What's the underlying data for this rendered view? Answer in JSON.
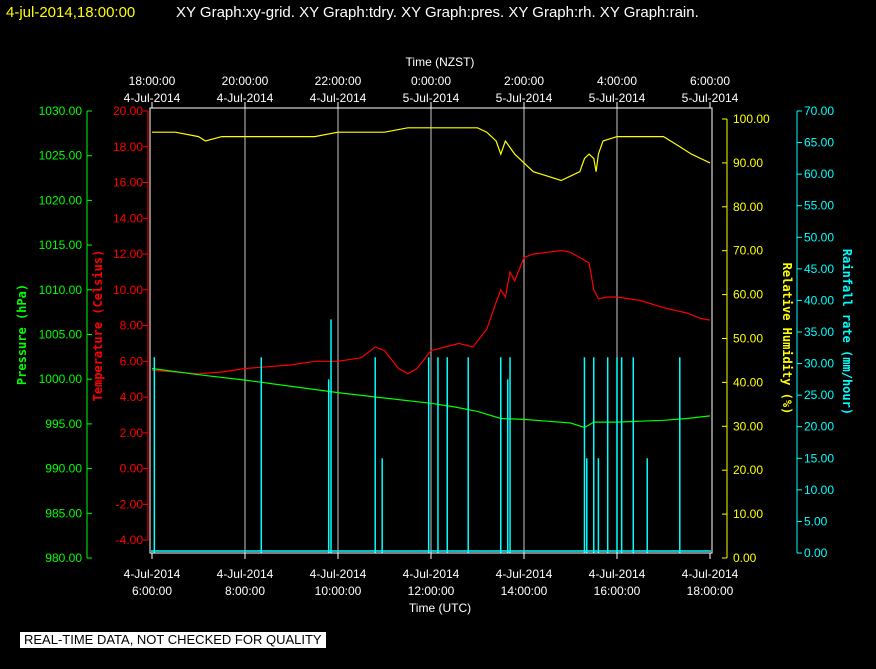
{
  "title": {
    "datetime": "4-jul-2014,18:00:00",
    "rest": "XY Graph:xy-grid.  XY Graph:tdry.  XY Graph:pres.  XY Graph:rh.  XY Graph:rain.",
    "datetime_color": "#ffff00",
    "rest_color": "#ffffff"
  },
  "disclaimer": "REAL-TIME DATA, NOT CHECKED FOR QUALITY",
  "chart_data": {
    "type": "line",
    "x_unit": "hours UTC on 4-Jul-2014",
    "xlim": [
      6.0,
      18.0
    ],
    "top_axis": {
      "title": "Time (NZST)",
      "ticks": [
        {
          "x": 6,
          "time": "18:00:00",
          "date": "4-Jul-2014"
        },
        {
          "x": 8,
          "time": "20:00:00",
          "date": "4-Jul-2014"
        },
        {
          "x": 10,
          "time": "22:00:00",
          "date": "4-Jul-2014"
        },
        {
          "x": 12,
          "time": "0:00:00",
          "date": "5-Jul-2014"
        },
        {
          "x": 14,
          "time": "2:00:00",
          "date": "5-Jul-2014"
        },
        {
          "x": 16,
          "time": "4:00:00",
          "date": "5-Jul-2014"
        },
        {
          "x": 18,
          "time": "6:00:00",
          "date": "5-Jul-2014"
        }
      ]
    },
    "bottom_axis": {
      "title": "Time (UTC)",
      "ticks": [
        {
          "x": 6,
          "date": "4-Jul-2014",
          "time": "6:00:00"
        },
        {
          "x": 8,
          "date": "4-Jul-2014",
          "time": "8:00:00"
        },
        {
          "x": 10,
          "date": "4-Jul-2014",
          "time": "10:00:00"
        },
        {
          "x": 12,
          "date": "4-Jul-2014",
          "time": "12:00:00"
        },
        {
          "x": 14,
          "date": "4-Jul-2014",
          "time": "14:00:00"
        },
        {
          "x": 16,
          "date": "4-Jul-2014",
          "time": "16:00:00"
        },
        {
          "x": 18,
          "date": "4-Jul-2014",
          "time": "18:00:00"
        }
      ]
    },
    "grid": true,
    "axes": {
      "pressure": {
        "label": "Pressure (hPa)",
        "color": "#00ff00",
        "ylim": [
          980,
          1030
        ],
        "ticks": [
          "980.00",
          "985.00",
          "990.00",
          "995.00",
          "1000.00",
          "1005.00",
          "1010.00",
          "1015.00",
          "1020.00",
          "1025.00",
          "1030.00"
        ]
      },
      "temperature": {
        "label": "Temperature (Celsius)",
        "color": "#ff0000",
        "ylim": [
          -5,
          20
        ],
        "ticks": [
          "-4.00",
          "-2.00",
          "0.00",
          "2.00",
          "4.00",
          "6.00",
          "8.00",
          "10.00",
          "12.00",
          "14.00",
          "16.00",
          "18.00",
          "20.00"
        ]
      },
      "humidity": {
        "label": "Relative Humidity (%)",
        "color": "#ffff00",
        "ylim": [
          0,
          100
        ],
        "ticks": [
          "0.00",
          "10.00",
          "20.00",
          "30.00",
          "40.00",
          "50.00",
          "60.00",
          "70.00",
          "80.00",
          "90.00",
          "100.00"
        ]
      },
      "rain": {
        "label": "Rainfall rate (mm/hour)",
        "color": "#00ffff",
        "ylim": [
          0,
          70
        ],
        "ticks": [
          "0.00",
          "5.00",
          "10.00",
          "15.00",
          "20.00",
          "25.00",
          "30.00",
          "35.00",
          "40.00",
          "45.00",
          "50.00",
          "55.00",
          "60.00",
          "65.00",
          "70.00"
        ]
      }
    },
    "series": [
      {
        "axis": "humidity",
        "color": "#ffff00",
        "x": [
          6.0,
          6.5,
          7.0,
          7.15,
          7.5,
          8.0,
          8.5,
          9.0,
          9.5,
          10.0,
          10.5,
          11.0,
          11.5,
          12.0,
          12.5,
          13.0,
          13.2,
          13.4,
          13.5,
          13.6,
          13.8,
          14.0,
          14.2,
          14.5,
          14.8,
          15.0,
          15.2,
          15.3,
          15.4,
          15.5,
          15.55,
          15.6,
          15.7,
          16.0,
          16.5,
          17.0,
          17.3,
          17.6,
          17.8,
          18.0
        ],
        "y": [
          97,
          97,
          96,
          95,
          96,
          96,
          96,
          96,
          96,
          97,
          97,
          97,
          98,
          98,
          98,
          98,
          97,
          95,
          92,
          95,
          92,
          90,
          88,
          87,
          86,
          87,
          88,
          91,
          92,
          91,
          88,
          92,
          95,
          96,
          96,
          96,
          94,
          92,
          91,
          90
        ]
      },
      {
        "axis": "temperature",
        "color": "#ff0000",
        "x": [
          6.0,
          6.5,
          7.0,
          7.5,
          8.0,
          8.5,
          9.0,
          9.5,
          10.0,
          10.5,
          10.8,
          11.0,
          11.3,
          11.5,
          11.7,
          12.0,
          12.3,
          12.6,
          12.9,
          13.2,
          13.4,
          13.5,
          13.6,
          13.7,
          13.8,
          14.0,
          14.2,
          14.5,
          14.8,
          15.0,
          15.2,
          15.4,
          15.5,
          15.6,
          15.8,
          16.0,
          16.5,
          17.0,
          17.5,
          17.8,
          18.0
        ],
        "y": [
          5.5,
          5.4,
          5.3,
          5.4,
          5.6,
          5.7,
          5.8,
          6.0,
          6.0,
          6.2,
          6.8,
          6.6,
          5.6,
          5.3,
          5.6,
          6.6,
          6.8,
          7.0,
          6.8,
          7.8,
          9.3,
          10.0,
          9.6,
          11.0,
          10.5,
          11.8,
          12.0,
          12.1,
          12.2,
          12.1,
          11.8,
          11.5,
          10.0,
          9.5,
          9.6,
          9.6,
          9.4,
          9.0,
          8.7,
          8.4,
          8.3
        ]
      },
      {
        "axis": "pressure",
        "color": "#00ff00",
        "x": [
          6.0,
          7.0,
          8.0,
          9.0,
          10.0,
          11.0,
          12.0,
          12.5,
          13.0,
          13.5,
          14.0,
          14.5,
          15.0,
          15.3,
          15.5,
          16.0,
          16.5,
          17.0,
          17.5,
          18.0
        ],
        "y": [
          1001.2,
          1000.5,
          999.9,
          999.2,
          998.5,
          997.9,
          997.3,
          996.9,
          996.4,
          995.6,
          995.5,
          995.3,
          995.1,
          994.6,
          995.2,
          995.2,
          995.3,
          995.4,
          995.6,
          995.9
        ]
      },
      {
        "axis": "rain",
        "type": "bar",
        "color": "#00ffff",
        "x": [
          6.05,
          8.35,
          9.8,
          9.85,
          10.8,
          10.95,
          11.95,
          12.15,
          12.35,
          12.8,
          13.5,
          13.65,
          13.7,
          15.3,
          15.35,
          15.5,
          15.6,
          15.8,
          16.0,
          16.1,
          16.35,
          16.65,
          17.35
        ],
        "y": [
          31,
          31,
          27.5,
          37,
          31,
          15,
          31,
          31,
          31,
          31,
          31,
          27.5,
          31,
          31,
          15,
          31,
          15,
          31,
          31,
          31,
          31,
          15,
          31
        ]
      }
    ]
  }
}
